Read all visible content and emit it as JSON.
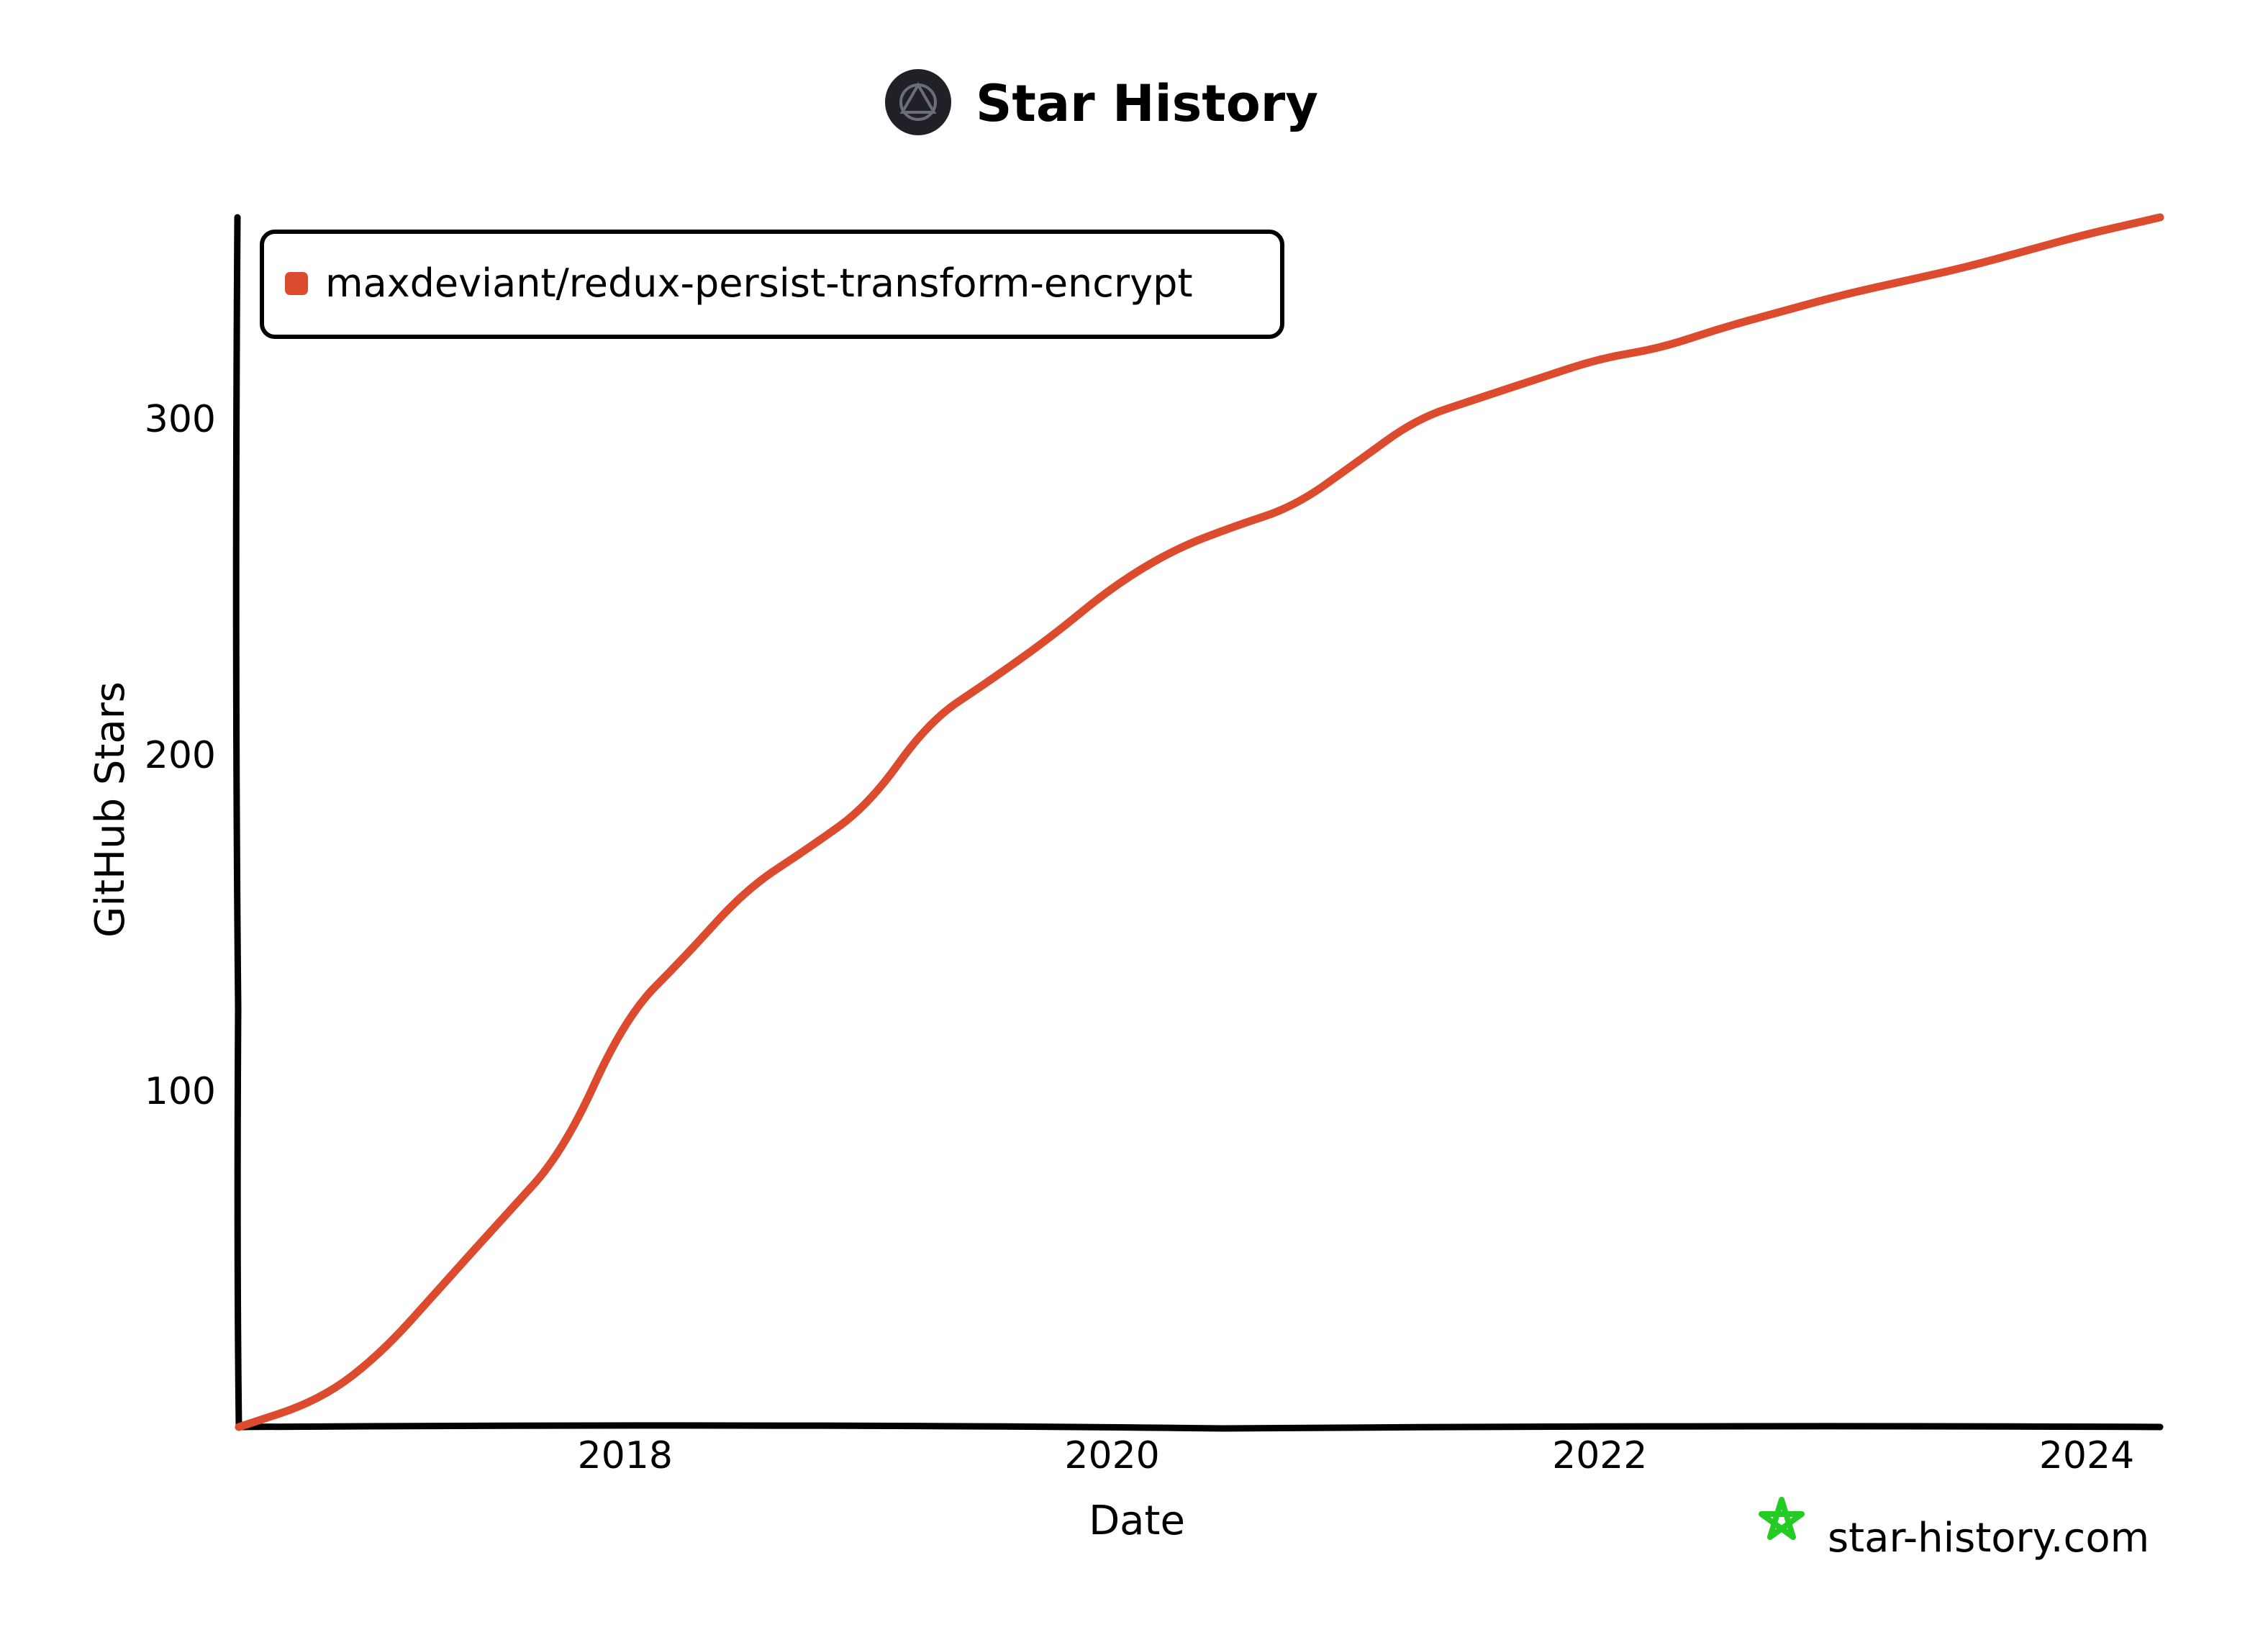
{
  "header": {
    "title": "Star History",
    "logo_icon": "star-history-logo-icon"
  },
  "watermark": {
    "text": "star-history.com",
    "icon": "star-outline-icon",
    "icon_color": "#22cc22"
  },
  "colors": {
    "series": "#dd4b2e",
    "axis": "#000000",
    "logo_bg": "#1f2126"
  },
  "chart_data": {
    "type": "line",
    "title": "Star History",
    "xlabel": "Date",
    "ylabel": "GitHub Stars",
    "x_ticks": [
      "2018",
      "2020",
      "2022",
      "2024"
    ],
    "y_ticks": [
      "100",
      "200",
      "300"
    ],
    "xlim": [
      "2016-06-01",
      "2024-04-20"
    ],
    "ylim": [
      0,
      360
    ],
    "grid": false,
    "legend_position": "top-left",
    "series": [
      {
        "name": "maxdeviant/redux-persist-transform-encrypt",
        "color": "#dd4b2e",
        "points": [
          [
            "2016-06-01",
            0
          ],
          [
            "2016-10-01",
            8
          ],
          [
            "2017-01-01",
            22
          ],
          [
            "2017-04-01",
            42
          ],
          [
            "2017-07-01",
            62
          ],
          [
            "2017-10-01",
            82
          ],
          [
            "2018-01-01",
            122
          ],
          [
            "2018-04-01",
            140
          ],
          [
            "2018-07-01",
            160
          ],
          [
            "2018-10-01",
            172
          ],
          [
            "2019-01-01",
            185
          ],
          [
            "2019-04-01",
            210
          ],
          [
            "2019-07-01",
            222
          ],
          [
            "2019-10-01",
            235
          ],
          [
            "2020-01-01",
            250
          ],
          [
            "2020-04-01",
            261
          ],
          [
            "2020-07-01",
            268
          ],
          [
            "2020-10-01",
            274
          ],
          [
            "2021-01-01",
            287
          ],
          [
            "2021-04-01",
            300
          ],
          [
            "2021-07-01",
            306
          ],
          [
            "2021-10-01",
            312
          ],
          [
            "2022-01-01",
            318
          ],
          [
            "2022-04-01",
            321
          ],
          [
            "2022-07-01",
            327
          ],
          [
            "2022-10-01",
            332
          ],
          [
            "2023-01-01",
            337
          ],
          [
            "2023-04-01",
            341
          ],
          [
            "2023-07-01",
            345
          ],
          [
            "2023-10-01",
            350
          ],
          [
            "2024-01-01",
            355
          ],
          [
            "2024-04-20",
            360
          ]
        ]
      }
    ]
  }
}
